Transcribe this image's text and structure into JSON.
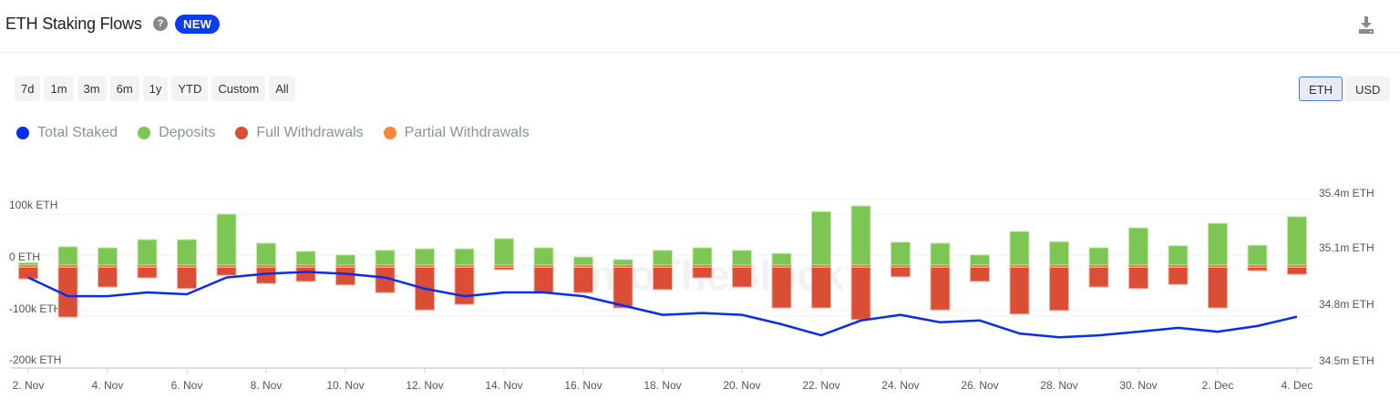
{
  "header": {
    "title": "ETH Staking Flows",
    "help_icon": "question-circle-icon",
    "badge": "NEW",
    "download_icon": "download-icon"
  },
  "range_buttons": [
    "7d",
    "1m",
    "3m",
    "6m",
    "1y",
    "YTD",
    "Custom",
    "All"
  ],
  "unit_toggle": {
    "options": [
      "ETH",
      "USD"
    ],
    "selected": "ETH"
  },
  "legend": [
    {
      "label": "Total Staked",
      "color": "#0a2cf0"
    },
    {
      "label": "Deposits",
      "color": "#7dc653"
    },
    {
      "label": "Full Withdrawals",
      "color": "#d94e34"
    },
    {
      "label": "Partial Withdrawals",
      "color": "#f5883a"
    }
  ],
  "watermark": "IntoTheBlock",
  "chart_data": {
    "type": "bar",
    "title": "ETH Staking Flows",
    "categories": [
      "2 Nov",
      "3 Nov",
      "4 Nov",
      "5 Nov",
      "6 Nov",
      "7 Nov",
      "8 Nov",
      "9 Nov",
      "10 Nov",
      "11 Nov",
      "12 Nov",
      "13 Nov",
      "14 Nov",
      "15 Nov",
      "16 Nov",
      "17 Nov",
      "18 Nov",
      "19 Nov",
      "20 Nov",
      "21 Nov",
      "22 Nov",
      "23 Nov",
      "24 Nov",
      "25 Nov",
      "26 Nov",
      "27 Nov",
      "28 Nov",
      "29 Nov",
      "30 Nov",
      "1 Dec",
      "2 Dec",
      "3 Dec",
      "4 Dec"
    ],
    "x_tick_labels": [
      "2. Nov",
      "4. Nov",
      "6. Nov",
      "8. Nov",
      "10. Nov",
      "12. Nov",
      "14. Nov",
      "16. Nov",
      "18. Nov",
      "20. Nov",
      "22. Nov",
      "24. Nov",
      "26. Nov",
      "28. Nov",
      "30. Nov",
      "2. Dec",
      "4. Dec"
    ],
    "series": [
      {
        "name": "Deposits",
        "type": "bar",
        "axis": "left",
        "color": "#7dc653",
        "values": [
          5,
          36,
          34,
          50,
          50,
          100,
          43,
          27,
          20,
          29,
          32,
          32,
          52,
          34,
          16,
          11,
          29,
          34,
          29,
          23,
          105,
          116,
          45,
          43,
          20,
          66,
          46,
          34,
          73,
          38,
          82,
          39,
          95
        ]
      },
      {
        "name": "Full Withdrawals",
        "type": "bar",
        "axis": "left",
        "color": "#d94e34",
        "values": [
          -27,
          -102,
          -43,
          -25,
          -46,
          -20,
          -36,
          -32,
          -39,
          -54,
          -88,
          -77,
          -9,
          -54,
          -54,
          -84,
          -48,
          -25,
          -43,
          -84,
          -84,
          -107,
          -23,
          -88,
          -32,
          -96,
          -89,
          -43,
          -46,
          -38,
          -84,
          -11,
          -18
        ]
      },
      {
        "name": "Partial Withdrawals",
        "type": "bar",
        "axis": "left",
        "color": "#f5883a",
        "values": [
          -1,
          -1,
          -1,
          -1,
          -1,
          -1,
          -1,
          -1,
          -1,
          -1,
          -1,
          -1,
          -1,
          -1,
          -1,
          -1,
          -1,
          -1,
          -1,
          -1,
          -1,
          -1,
          -1,
          -1,
          -1,
          -1,
          -1,
          -1,
          -1,
          -1,
          -1,
          -1,
          -1
        ]
      },
      {
        "name": "Total Staked",
        "type": "line",
        "axis": "right",
        "color": "#0a2cf0",
        "values": [
          34.98,
          34.88,
          34.88,
          34.9,
          34.89,
          34.98,
          35.0,
          35.01,
          35.0,
          34.98,
          34.92,
          34.88,
          34.9,
          34.9,
          34.88,
          34.83,
          34.78,
          34.79,
          34.78,
          34.73,
          34.67,
          34.75,
          34.78,
          34.74,
          34.75,
          34.68,
          34.66,
          34.67,
          34.69,
          34.71,
          34.69,
          34.72,
          34.77
        ]
      }
    ],
    "units": {
      "left": "k ETH",
      "right": "m ETH"
    },
    "y_left": {
      "ticks": [
        "100k ETH",
        "0 ETH",
        "-100k ETH",
        "-200k ETH"
      ],
      "range": [
        -200,
        100
      ]
    },
    "y_right": {
      "ticks": [
        "35.4m ETH",
        "35.1m ETH",
        "34.8m ETH",
        "34.5m ETH"
      ],
      "range": [
        34.5,
        35.4
      ]
    },
    "grid": true,
    "legend_position": "top-left"
  }
}
